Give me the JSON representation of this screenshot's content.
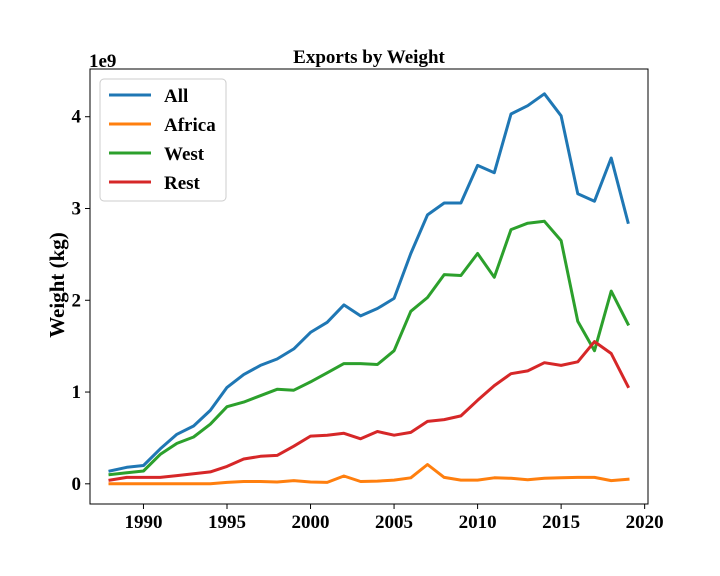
{
  "chart_data": {
    "type": "line",
    "title": "Exports by Weight",
    "xlabel": "",
    "ylabel": "Weight (kg)",
    "y_offset_label": "1e9",
    "xlim": [
      1986.8,
      2020.2
    ],
    "ylim": [
      -0.22,
      4.52
    ],
    "x_ticks": [
      1990,
      1995,
      2000,
      2005,
      2010,
      2015,
      2020
    ],
    "y_ticks": [
      0,
      1,
      2,
      3,
      4
    ],
    "legend_position": "top-left",
    "grid": false,
    "x": [
      1988,
      1989,
      1990,
      1991,
      1992,
      1993,
      1994,
      1995,
      1996,
      1997,
      1998,
      1999,
      2000,
      2001,
      2002,
      2003,
      2004,
      2005,
      2006,
      2007,
      2008,
      2009,
      2010,
      2011,
      2012,
      2013,
      2014,
      2015,
      2016,
      2017,
      2018,
      2019
    ],
    "series": [
      {
        "name": "All",
        "color": "#1f77b4",
        "values": [
          0.14,
          0.18,
          0.2,
          0.38,
          0.54,
          0.63,
          0.8,
          1.05,
          1.19,
          1.29,
          1.36,
          1.47,
          1.65,
          1.76,
          1.95,
          1.83,
          1.91,
          2.02,
          2.51,
          2.93,
          3.06,
          3.06,
          3.47,
          3.39,
          4.03,
          4.12,
          4.25,
          4.01,
          3.16,
          3.08,
          3.55,
          2.85
        ]
      },
      {
        "name": "Africa",
        "color": "#ff7f0e",
        "values": [
          0.0,
          0.0,
          0.0,
          0.0,
          0.0,
          0.0,
          0.0,
          0.015,
          0.025,
          0.025,
          0.02,
          0.035,
          0.02,
          0.015,
          0.085,
          0.025,
          0.03,
          0.04,
          0.065,
          0.21,
          0.07,
          0.04,
          0.04,
          0.065,
          0.06,
          0.045,
          0.06,
          0.065,
          0.07,
          0.07,
          0.035,
          0.05
        ]
      },
      {
        "name": "West",
        "color": "#2ca02c",
        "values": [
          0.1,
          0.12,
          0.14,
          0.32,
          0.44,
          0.51,
          0.65,
          0.84,
          0.89,
          0.96,
          1.03,
          1.02,
          1.11,
          1.21,
          1.31,
          1.31,
          1.3,
          1.45,
          1.88,
          2.03,
          2.28,
          2.27,
          2.51,
          2.25,
          2.77,
          2.84,
          2.86,
          2.65,
          1.77,
          1.45,
          2.1,
          1.74
        ]
      },
      {
        "name": "Rest",
        "color": "#d62728",
        "values": [
          0.04,
          0.07,
          0.07,
          0.07,
          0.09,
          0.11,
          0.13,
          0.19,
          0.27,
          0.3,
          0.31,
          0.41,
          0.52,
          0.53,
          0.55,
          0.49,
          0.57,
          0.53,
          0.56,
          0.68,
          0.7,
          0.74,
          0.91,
          1.07,
          1.2,
          1.23,
          1.32,
          1.29,
          1.33,
          1.55,
          1.42,
          1.06
        ]
      }
    ]
  }
}
